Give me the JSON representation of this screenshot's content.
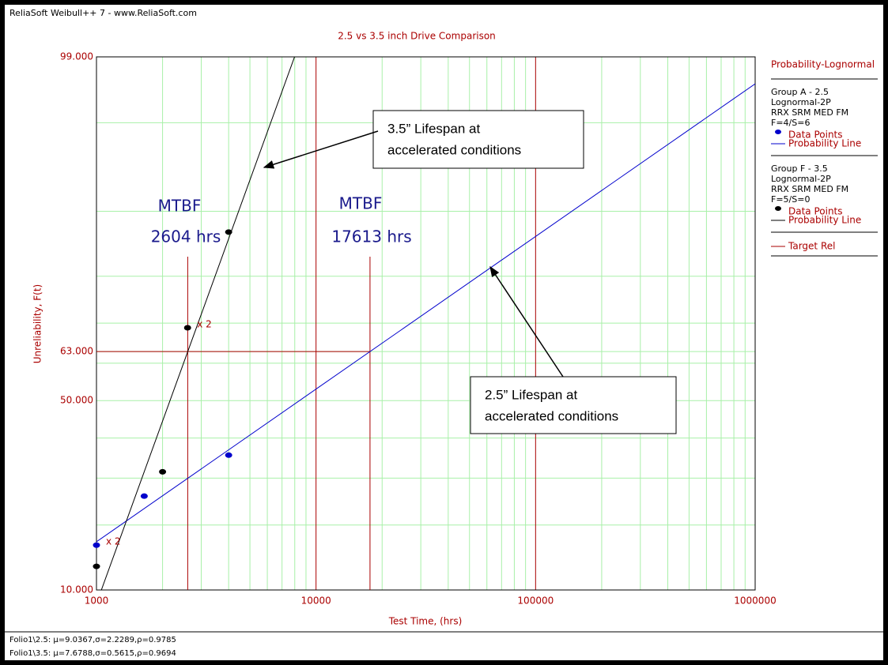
{
  "header": "ReliaSoft Weibull++ 7 - www.ReliaSoft.com",
  "chart_data": {
    "type": "probability",
    "title": "2.5 vs 3.5 inch Drive Comparison",
    "xlabel": "Test Time, (hrs)",
    "ylabel": "Unreliability, F(t)",
    "xscale": "log",
    "yscale": "lognormal-probability",
    "xlim": [
      1000,
      1000000
    ],
    "xticks": [
      1000,
      10000,
      100000,
      1000000
    ],
    "ylim": [
      10,
      99
    ],
    "yticks": [
      {
        "value": 10,
        "label": "10.000"
      },
      {
        "value": 50,
        "label": "50.000"
      },
      {
        "value": 63,
        "label": "63.000"
      },
      {
        "value": 99,
        "label": "99.000"
      }
    ],
    "yminor": [
      20,
      30,
      40,
      60,
      70,
      80,
      90,
      97
    ],
    "grid": true,
    "series": [
      {
        "name": "Group A - 2.5",
        "color": "#0000cc",
        "mu": 9.0367,
        "sigma": 2.2289,
        "x": [
          1000,
          1650,
          4000
        ],
        "values": [
          16.4,
          25.9,
          35.6
        ]
      },
      {
        "name": "Group F - 3.5",
        "color": "#000000",
        "mu": 7.6788,
        "sigma": 0.5615,
        "x": [
          1000,
          2000,
          2600,
          4000
        ],
        "values": [
          13.1,
          31.5,
          68.9,
          87.3
        ]
      }
    ],
    "point_notes": [
      {
        "series": 0,
        "point": 0,
        "text": "x 2"
      },
      {
        "series": 1,
        "point": 2,
        "text": "x 2"
      }
    ],
    "target": {
      "name": "Target Rel",
      "color": "#aa0000",
      "value": 63,
      "times": [
        2604,
        17613
      ]
    },
    "annotations": [
      {
        "title": "MTBF",
        "text": "2604 hrs"
      },
      {
        "title": "MTBF",
        "text": "17613 hrs"
      }
    ],
    "callouts": [
      {
        "lines": [
          "3.5” Lifespan at",
          "accelerated conditions"
        ]
      },
      {
        "lines": [
          "2.5” Lifespan at",
          "accelerated conditions"
        ]
      }
    ],
    "legend": {
      "title": "Probability-Lognormal",
      "groups": [
        {
          "lines": [
            "Lognormal-2P",
            "RRX SRM MED FM",
            "F=4/S=6"
          ],
          "points": "Data Points",
          "line": "Probability Line"
        },
        {
          "lines": [
            "Lognormal-2P",
            "RRX SRM MED FM",
            "F=5/S=0"
          ],
          "points": "Data Points",
          "line": "Probability Line"
        }
      ]
    }
  },
  "footer": [
    "Folio1\\2.5: μ=9.0367,σ=2.2289,ρ=0.9785",
    "Folio1\\3.5: μ=7.6788,σ=0.5615,ρ=0.9694"
  ]
}
